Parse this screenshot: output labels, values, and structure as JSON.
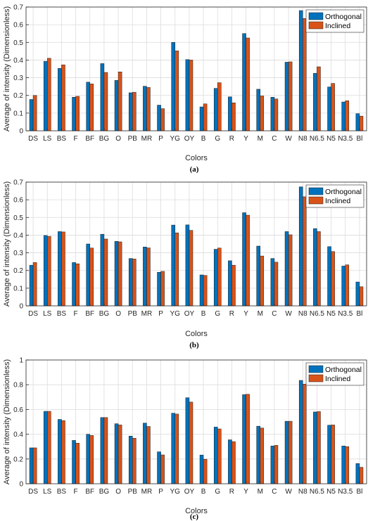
{
  "chart_data": [
    {
      "type": "bar",
      "caption": "(a)",
      "xlabel": "Colors",
      "ylabel": "Average of intensity (Dimensionless)",
      "ylim": [
        0,
        0.7
      ],
      "yticks": [
        "0",
        "0.1",
        "0.2",
        "0.3",
        "0.4",
        "0.5",
        "0.6",
        "0.7"
      ],
      "grid": true,
      "legend_position": "top-right",
      "categories": [
        "DS",
        "LS",
        "BS",
        "F",
        "BF",
        "BG",
        "O",
        "PB",
        "MR",
        "P",
        "YG",
        "OY",
        "B",
        "G",
        "R",
        "Y",
        "M",
        "C",
        "W",
        "N8",
        "N6.5",
        "N5",
        "N3.5",
        "Bl"
      ],
      "series": [
        {
          "name": "Orthogonal",
          "color": "#0072BD",
          "values": [
            0.177,
            0.393,
            0.353,
            0.19,
            0.275,
            0.38,
            0.285,
            0.215,
            0.252,
            0.145,
            0.5,
            0.403,
            0.135,
            0.24,
            0.192,
            0.55,
            0.235,
            0.19,
            0.388,
            0.68,
            0.325,
            0.248,
            0.163,
            0.097
          ]
        },
        {
          "name": "Inclined",
          "color": "#D95319",
          "values": [
            0.2,
            0.41,
            0.373,
            0.195,
            0.265,
            0.33,
            0.333,
            0.218,
            0.245,
            0.125,
            0.452,
            0.4,
            0.152,
            0.272,
            0.158,
            0.525,
            0.197,
            0.18,
            0.39,
            0.635,
            0.362,
            0.268,
            0.17,
            0.083
          ]
        }
      ]
    },
    {
      "type": "bar",
      "caption": "(b)",
      "xlabel": "Colors",
      "ylabel": "Average of intensity (Dimensionless)",
      "ylim": [
        0,
        0.7
      ],
      "yticks": [
        "0",
        "0.1",
        "0.2",
        "0.3",
        "0.4",
        "0.5",
        "0.6",
        "0.7"
      ],
      "grid": true,
      "legend_position": "top-right",
      "categories": [
        "DS",
        "LS",
        "BS",
        "F",
        "BF",
        "BG",
        "O",
        "PB",
        "MR",
        "P",
        "YG",
        "OY",
        "B",
        "G",
        "R",
        "Y",
        "M",
        "C",
        "W",
        "N8",
        "N6.5",
        "N5",
        "N3.5",
        "Bl"
      ],
      "series": [
        {
          "name": "Orthogonal",
          "color": "#0072BD",
          "values": [
            0.23,
            0.398,
            0.42,
            0.245,
            0.35,
            0.405,
            0.365,
            0.268,
            0.333,
            0.19,
            0.457,
            0.458,
            0.175,
            0.32,
            0.255,
            0.527,
            0.338,
            0.268,
            0.42,
            0.673,
            0.437,
            0.335,
            0.225,
            0.135
          ]
        },
        {
          "name": "Inclined",
          "color": "#D95319",
          "values": [
            0.245,
            0.393,
            0.418,
            0.238,
            0.327,
            0.378,
            0.362,
            0.265,
            0.328,
            0.195,
            0.413,
            0.427,
            0.172,
            0.327,
            0.23,
            0.513,
            0.282,
            0.247,
            0.402,
            0.617,
            0.42,
            0.307,
            0.232,
            0.108
          ]
        }
      ]
    },
    {
      "type": "bar",
      "caption": "(c)",
      "xlabel": "Colors",
      "ylabel": "Average of intensity (Dimensionless)",
      "ylim": [
        0,
        1
      ],
      "yticks": [
        "0",
        "0.2",
        "0.4",
        "0.6",
        "0.8",
        "1"
      ],
      "grid": true,
      "legend_position": "top-right",
      "categories": [
        "DS",
        "LS",
        "BS",
        "F",
        "BF",
        "BG",
        "O",
        "PB",
        "MR",
        "P",
        "YG",
        "OY",
        "B",
        "G",
        "R",
        "Y",
        "M",
        "C",
        "W",
        "N8",
        "N6.5",
        "N5",
        "N3.5",
        "Bl"
      ],
      "series": [
        {
          "name": "Orthogonal",
          "color": "#0072BD",
          "values": [
            0.29,
            0.585,
            0.52,
            0.35,
            0.4,
            0.535,
            0.485,
            0.385,
            0.49,
            0.258,
            0.57,
            0.695,
            0.232,
            0.458,
            0.355,
            0.72,
            0.465,
            0.305,
            0.505,
            0.835,
            0.58,
            0.473,
            0.305,
            0.163
          ]
        },
        {
          "name": "Inclined",
          "color": "#D95319",
          "values": [
            0.29,
            0.585,
            0.51,
            0.328,
            0.39,
            0.535,
            0.475,
            0.368,
            0.463,
            0.233,
            0.563,
            0.66,
            0.198,
            0.443,
            0.34,
            0.723,
            0.45,
            0.31,
            0.505,
            0.805,
            0.583,
            0.475,
            0.3,
            0.133
          ]
        }
      ]
    }
  ]
}
